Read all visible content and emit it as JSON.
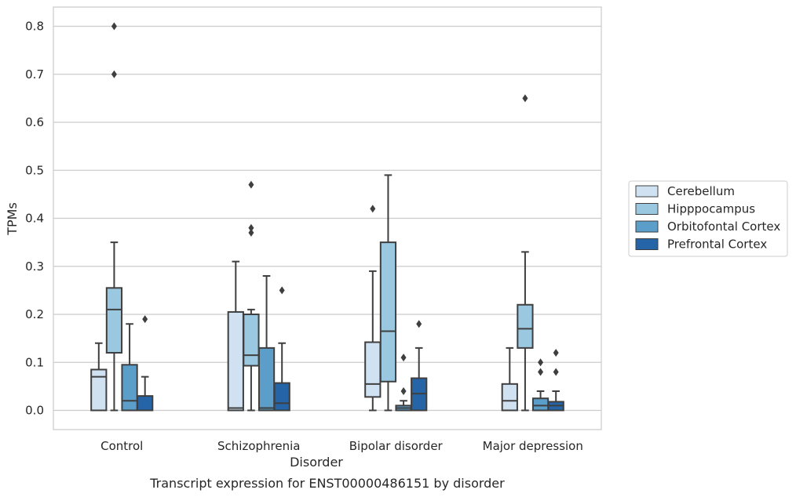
{
  "chart_data": {
    "type": "box",
    "title": "",
    "caption": "Transcript expression for ENST00000486151 by disorder",
    "xlabel": "Disorder",
    "ylabel": "TPMs",
    "ylim": [
      -0.04,
      0.84
    ],
    "yticks": [
      "0.0",
      "0.1",
      "0.2",
      "0.3",
      "0.4",
      "0.5",
      "0.6",
      "0.7",
      "0.8"
    ],
    "grid": "horizontal",
    "legend_position": "right",
    "categories": [
      "Control",
      "Schizophrenia",
      "Bipolar disorder",
      "Major depression"
    ],
    "series": [
      {
        "name": "Cerebellum",
        "color": "#d0e1f2",
        "boxes": [
          {
            "whislo": 0.0,
            "q1": 0.0,
            "med": 0.07,
            "q3": 0.085,
            "whishi": 0.14,
            "fliers": []
          },
          {
            "whislo": 0.0,
            "q1": 0.0,
            "med": 0.005,
            "q3": 0.205,
            "whishi": 0.31,
            "fliers": []
          },
          {
            "whislo": 0.0,
            "q1": 0.028,
            "med": 0.055,
            "q3": 0.142,
            "whishi": 0.29,
            "fliers": [
              0.42
            ]
          },
          {
            "whislo": 0.0,
            "q1": 0.0,
            "med": 0.02,
            "q3": 0.055,
            "whishi": 0.13,
            "fliers": []
          }
        ]
      },
      {
        "name": "Hipppocampus",
        "color": "#9ac8e0",
        "boxes": [
          {
            "whislo": 0.0,
            "q1": 0.12,
            "med": 0.21,
            "q3": 0.255,
            "whishi": 0.35,
            "fliers": [
              0.7,
              0.8
            ]
          },
          {
            "whislo": 0.0,
            "q1": 0.093,
            "med": 0.115,
            "q3": 0.2,
            "whishi": 0.21,
            "fliers": [
              0.37,
              0.38,
              0.47
            ]
          },
          {
            "whislo": 0.0,
            "q1": 0.06,
            "med": 0.165,
            "q3": 0.35,
            "whishi": 0.49,
            "fliers": []
          },
          {
            "whislo": 0.0,
            "q1": 0.13,
            "med": 0.17,
            "q3": 0.22,
            "whishi": 0.33,
            "fliers": [
              0.65
            ]
          }
        ]
      },
      {
        "name": "Orbitofontal Cortex",
        "color": "#5a9ec9",
        "boxes": [
          {
            "whislo": 0.0,
            "q1": 0.0,
            "med": 0.02,
            "q3": 0.095,
            "whishi": 0.18,
            "fliers": []
          },
          {
            "whislo": 0.0,
            "q1": 0.0,
            "med": 0.005,
            "q3": 0.13,
            "whishi": 0.28,
            "fliers": []
          },
          {
            "whislo": 0.0,
            "q1": 0.0,
            "med": 0.005,
            "q3": 0.01,
            "whishi": 0.02,
            "fliers": [
              0.04,
              0.11
            ]
          },
          {
            "whislo": 0.0,
            "q1": 0.0,
            "med": 0.01,
            "q3": 0.025,
            "whishi": 0.04,
            "fliers": [
              0.08,
              0.1
            ]
          }
        ]
      },
      {
        "name": "Prefrontal Cortex",
        "color": "#2464a7",
        "boxes": [
          {
            "whislo": 0.0,
            "q1": 0.0,
            "med": 0.0,
            "q3": 0.03,
            "whishi": 0.07,
            "fliers": [
              0.19
            ]
          },
          {
            "whislo": 0.0,
            "q1": 0.0,
            "med": 0.015,
            "q3": 0.057,
            "whishi": 0.14,
            "fliers": [
              0.25
            ]
          },
          {
            "whislo": 0.0,
            "q1": 0.0,
            "med": 0.035,
            "q3": 0.067,
            "whishi": 0.13,
            "fliers": [
              0.18
            ]
          },
          {
            "whislo": 0.0,
            "q1": 0.0,
            "med": 0.01,
            "q3": 0.018,
            "whishi": 0.04,
            "fliers": [
              0.08,
              0.12
            ]
          }
        ]
      }
    ]
  }
}
